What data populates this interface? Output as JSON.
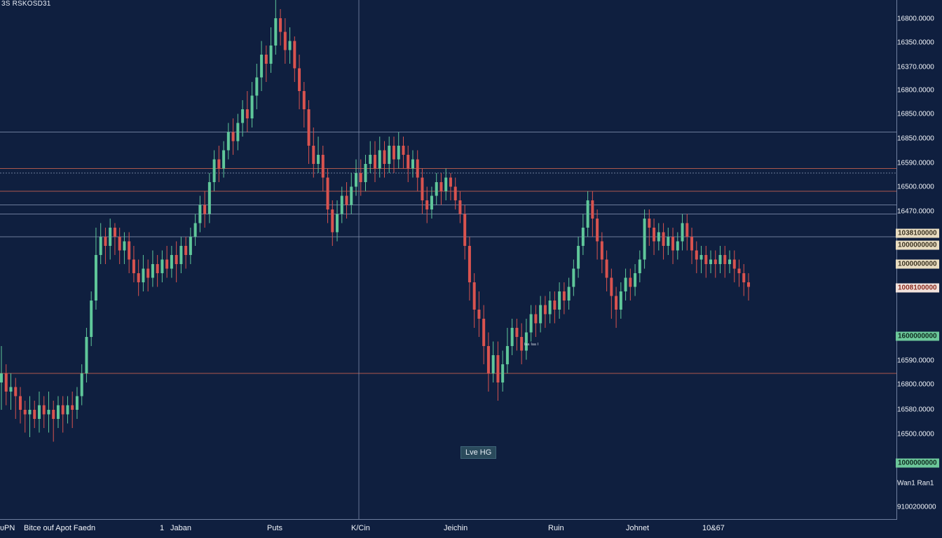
{
  "header": {
    "symbol": "3S RSKOSD31"
  },
  "chart_data": {
    "type": "candlestick",
    "x_tick_labels": [
      "ᴜPN",
      "Bitce ouf Apot Faedn",
      "1",
      "Jaban",
      "Puts",
      "K/Cin",
      "Jeichin",
      "Ruin",
      "Johnet",
      "10&67"
    ],
    "y_tick_labels": [
      "16800.0000",
      "16350.0000",
      "16370.0000",
      "16800.0000",
      "16850.0000",
      "16850.0000",
      "16590.0000",
      "16500.0000",
      "16470.0000",
      "16590.0000",
      "16800.0000",
      "16580.0000",
      "16500.0000",
      "Wan1 Ran1",
      "9100200000"
    ],
    "price_tags": [
      {
        "label": "1038100000",
        "style": "cream"
      },
      {
        "label": "1000000000",
        "style": "cream"
      },
      {
        "label": "1000000000",
        "style": "cream"
      },
      {
        "label": "1008100000",
        "style": "red"
      },
      {
        "label": "1600000000",
        "style": "green"
      },
      {
        "label": "1000000000",
        "style": "green"
      }
    ],
    "annotation": "Lve HG",
    "volume_label": "ᴵᵃᵃ ᴵᵃᵃ ᴵ",
    "colors": {
      "up": "#5fc79a",
      "down": "#d9534f",
      "background": "#0f1f3f",
      "grid": "#7d8cab",
      "level_red": "#c8614f"
    },
    "series": [
      {
        "values": [
          [
            0.58,
            0.6,
            0.52,
            0.66
          ],
          [
            0.6,
            0.56,
            0.53,
            0.62
          ],
          [
            0.56,
            0.57,
            0.52,
            0.6
          ],
          [
            0.57,
            0.55,
            0.5,
            0.59
          ],
          [
            0.55,
            0.52,
            0.49,
            0.57
          ],
          [
            0.52,
            0.51,
            0.47,
            0.54
          ],
          [
            0.51,
            0.52,
            0.46,
            0.55
          ],
          [
            0.52,
            0.5,
            0.48,
            0.54
          ],
          [
            0.5,
            0.53,
            0.47,
            0.56
          ],
          [
            0.53,
            0.51,
            0.48,
            0.55
          ],
          [
            0.51,
            0.52,
            0.47,
            0.56
          ],
          [
            0.52,
            0.5,
            0.45,
            0.54
          ],
          [
            0.5,
            0.53,
            0.48,
            0.55
          ],
          [
            0.53,
            0.51,
            0.47,
            0.55
          ],
          [
            0.51,
            0.53,
            0.49,
            0.55
          ],
          [
            0.53,
            0.52,
            0.48,
            0.56
          ],
          [
            0.52,
            0.55,
            0.5,
            0.57
          ],
          [
            0.55,
            0.6,
            0.53,
            0.62
          ],
          [
            0.6,
            0.68,
            0.58,
            0.7
          ],
          [
            0.68,
            0.76,
            0.66,
            0.78
          ],
          [
            0.76,
            0.86,
            0.74,
            0.92
          ],
          [
            0.86,
            0.9,
            0.84,
            0.93
          ],
          [
            0.9,
            0.88,
            0.84,
            0.92
          ],
          [
            0.88,
            0.92,
            0.85,
            0.94
          ],
          [
            0.92,
            0.9,
            0.86,
            0.93
          ],
          [
            0.9,
            0.87,
            0.84,
            0.92
          ],
          [
            0.87,
            0.89,
            0.84,
            0.91
          ],
          [
            0.89,
            0.85,
            0.82,
            0.91
          ],
          [
            0.85,
            0.82,
            0.8,
            0.88
          ],
          [
            0.82,
            0.8,
            0.77,
            0.85
          ],
          [
            0.8,
            0.83,
            0.78,
            0.86
          ],
          [
            0.83,
            0.81,
            0.78,
            0.85
          ],
          [
            0.81,
            0.84,
            0.79,
            0.87
          ],
          [
            0.84,
            0.82,
            0.79,
            0.86
          ],
          [
            0.82,
            0.85,
            0.8,
            0.87
          ],
          [
            0.85,
            0.83,
            0.81,
            0.88
          ],
          [
            0.83,
            0.86,
            0.81,
            0.88
          ],
          [
            0.86,
            0.84,
            0.8,
            0.89
          ],
          [
            0.84,
            0.88,
            0.82,
            0.9
          ],
          [
            0.88,
            0.86,
            0.83,
            0.9
          ],
          [
            0.86,
            0.9,
            0.84,
            0.92
          ],
          [
            0.9,
            0.93,
            0.88,
            0.95
          ],
          [
            0.93,
            0.97,
            0.91,
            0.99
          ],
          [
            0.97,
            0.95,
            0.92,
            1.0
          ],
          [
            0.95,
            1.02,
            0.93,
            1.04
          ],
          [
            1.02,
            1.07,
            1.0,
            1.09
          ],
          [
            1.07,
            1.05,
            1.02,
            1.1
          ],
          [
            1.05,
            1.09,
            1.03,
            1.11
          ],
          [
            1.09,
            1.13,
            1.07,
            1.15
          ],
          [
            1.13,
            1.11,
            1.08,
            1.16
          ],
          [
            1.11,
            1.15,
            1.09,
            1.17
          ],
          [
            1.15,
            1.18,
            1.12,
            1.2
          ],
          [
            1.18,
            1.16,
            1.13,
            1.22
          ],
          [
            1.16,
            1.21,
            1.14,
            1.24
          ],
          [
            1.21,
            1.25,
            1.18,
            1.28
          ],
          [
            1.25,
            1.3,
            1.22,
            1.33
          ],
          [
            1.3,
            1.28,
            1.24,
            1.32
          ],
          [
            1.28,
            1.32,
            1.26,
            1.36
          ],
          [
            1.32,
            1.38,
            1.3,
            1.42
          ],
          [
            1.38,
            1.35,
            1.32,
            1.4
          ],
          [
            1.35,
            1.31,
            1.28,
            1.38
          ],
          [
            1.31,
            1.33,
            1.28,
            1.36
          ],
          [
            1.33,
            1.27,
            1.24,
            1.34
          ],
          [
            1.27,
            1.22,
            1.18,
            1.3
          ],
          [
            1.22,
            1.18,
            1.14,
            1.24
          ],
          [
            1.18,
            1.1,
            1.06,
            1.2
          ],
          [
            1.1,
            1.06,
            1.03,
            1.14
          ],
          [
            1.06,
            1.08,
            1.04,
            1.12
          ],
          [
            1.08,
            1.03,
            1.0,
            1.1
          ],
          [
            1.03,
            0.96,
            0.93,
            1.05
          ],
          [
            0.96,
            0.91,
            0.88,
            0.98
          ],
          [
            0.91,
            0.95,
            0.89,
            0.98
          ],
          [
            0.95,
            0.99,
            0.93,
            1.01
          ],
          [
            0.99,
            0.97,
            0.94,
            1.02
          ],
          [
            0.97,
            1.01,
            0.95,
            1.04
          ],
          [
            1.01,
            1.04,
            0.99,
            1.07
          ],
          [
            1.04,
            1.02,
            0.99,
            1.07
          ],
          [
            1.02,
            1.06,
            1.0,
            1.08
          ],
          [
            1.06,
            1.08,
            1.04,
            1.11
          ],
          [
            1.08,
            1.05,
            1.02,
            1.11
          ],
          [
            1.05,
            1.09,
            1.03,
            1.12
          ],
          [
            1.09,
            1.06,
            1.03,
            1.11
          ],
          [
            1.06,
            1.1,
            1.04,
            1.12
          ],
          [
            1.1,
            1.07,
            1.04,
            1.12
          ],
          [
            1.07,
            1.1,
            1.05,
            1.13
          ],
          [
            1.1,
            1.08,
            1.05,
            1.12
          ],
          [
            1.08,
            1.05,
            1.02,
            1.1
          ],
          [
            1.05,
            1.07,
            1.03,
            1.09
          ],
          [
            1.07,
            1.03,
            1.0,
            1.09
          ],
          [
            1.03,
            0.98,
            0.95,
            1.05
          ],
          [
            0.98,
            0.96,
            0.93,
            1.01
          ],
          [
            0.96,
            0.99,
            0.94,
            1.01
          ],
          [
            0.99,
            1.02,
            0.97,
            1.04
          ],
          [
            1.02,
            1.0,
            0.97,
            1.04
          ],
          [
            1.0,
            1.03,
            0.98,
            1.05
          ],
          [
            1.03,
            1.01,
            0.98,
            1.04
          ],
          [
            1.01,
            0.98,
            0.96,
            1.03
          ],
          [
            0.98,
            0.95,
            0.93,
            1.0
          ],
          [
            0.95,
            0.88,
            0.85,
            0.97
          ],
          [
            0.88,
            0.8,
            0.76,
            0.9
          ],
          [
            0.8,
            0.74,
            0.7,
            0.82
          ],
          [
            0.74,
            0.72,
            0.68,
            0.78
          ],
          [
            0.72,
            0.66,
            0.62,
            0.75
          ],
          [
            0.66,
            0.6,
            0.56,
            0.69
          ],
          [
            0.6,
            0.64,
            0.58,
            0.67
          ],
          [
            0.64,
            0.58,
            0.54,
            0.67
          ],
          [
            0.58,
            0.62,
            0.56,
            0.65
          ],
          [
            0.62,
            0.66,
            0.6,
            0.7
          ],
          [
            0.66,
            0.7,
            0.64,
            0.72
          ],
          [
            0.7,
            0.68,
            0.65,
            0.72
          ],
          [
            0.68,
            0.65,
            0.62,
            0.71
          ],
          [
            0.65,
            0.69,
            0.63,
            0.72
          ],
          [
            0.69,
            0.73,
            0.67,
            0.75
          ],
          [
            0.73,
            0.71,
            0.68,
            0.75
          ],
          [
            0.71,
            0.75,
            0.69,
            0.77
          ],
          [
            0.75,
            0.73,
            0.7,
            0.77
          ],
          [
            0.73,
            0.76,
            0.71,
            0.78
          ],
          [
            0.76,
            0.74,
            0.71,
            0.78
          ],
          [
            0.74,
            0.78,
            0.72,
            0.8
          ],
          [
            0.78,
            0.76,
            0.73,
            0.8
          ],
          [
            0.76,
            0.79,
            0.74,
            0.81
          ],
          [
            0.79,
            0.83,
            0.77,
            0.85
          ],
          [
            0.83,
            0.88,
            0.81,
            0.9
          ],
          [
            0.88,
            0.92,
            0.86,
            0.95
          ],
          [
            0.92,
            0.98,
            0.9,
            1.0
          ],
          [
            0.98,
            0.94,
            0.9,
            1.0
          ],
          [
            0.94,
            0.89,
            0.85,
            0.96
          ],
          [
            0.89,
            0.85,
            0.82,
            0.91
          ],
          [
            0.85,
            0.81,
            0.78,
            0.87
          ],
          [
            0.81,
            0.77,
            0.72,
            0.83
          ],
          [
            0.77,
            0.74,
            0.7,
            0.79
          ],
          [
            0.74,
            0.78,
            0.72,
            0.8
          ],
          [
            0.78,
            0.81,
            0.76,
            0.83
          ],
          [
            0.81,
            0.79,
            0.76,
            0.83
          ],
          [
            0.79,
            0.82,
            0.77,
            0.84
          ],
          [
            0.82,
            0.85,
            0.8,
            0.87
          ],
          [
            0.85,
            0.94,
            0.83,
            0.96
          ],
          [
            0.94,
            0.92,
            0.88,
            0.96
          ],
          [
            0.92,
            0.89,
            0.86,
            0.94
          ],
          [
            0.89,
            0.91,
            0.87,
            0.93
          ],
          [
            0.91,
            0.88,
            0.85,
            0.93
          ],
          [
            0.88,
            0.9,
            0.86,
            0.92
          ],
          [
            0.9,
            0.87,
            0.84,
            0.92
          ],
          [
            0.87,
            0.89,
            0.85,
            0.91
          ],
          [
            0.89,
            0.93,
            0.87,
            0.95
          ],
          [
            0.93,
            0.9,
            0.87,
            0.95
          ],
          [
            0.9,
            0.87,
            0.84,
            0.92
          ],
          [
            0.87,
            0.85,
            0.82,
            0.89
          ],
          [
            0.85,
            0.86,
            0.82,
            0.88
          ],
          [
            0.86,
            0.84,
            0.81,
            0.88
          ],
          [
            0.84,
            0.85,
            0.82,
            0.87
          ],
          [
            0.85,
            0.84,
            0.81,
            0.87
          ],
          [
            0.84,
            0.86,
            0.82,
            0.88
          ],
          [
            0.86,
            0.84,
            0.81,
            0.88
          ],
          [
            0.84,
            0.85,
            0.82,
            0.87
          ],
          [
            0.85,
            0.83,
            0.8,
            0.87
          ],
          [
            0.83,
            0.82,
            0.79,
            0.85
          ],
          [
            0.82,
            0.8,
            0.77,
            0.84
          ],
          [
            0.8,
            0.79,
            0.76,
            0.82
          ]
        ]
      }
    ]
  }
}
